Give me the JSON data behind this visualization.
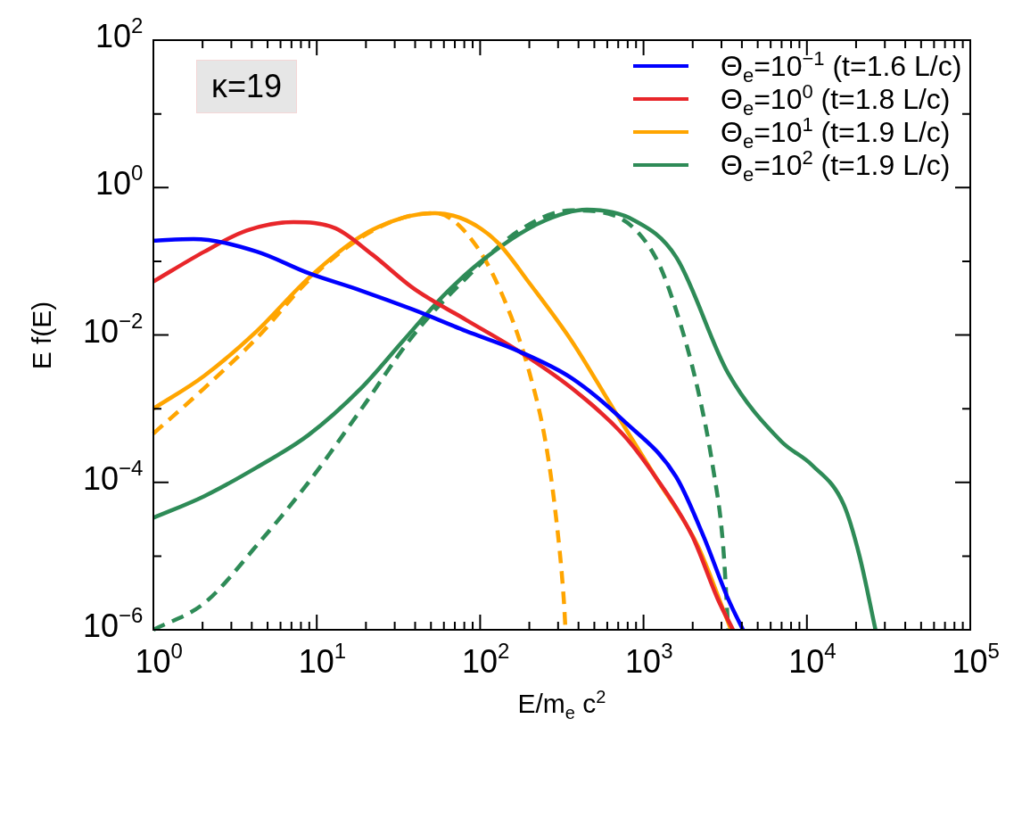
{
  "chart_data": {
    "type": "line",
    "xlabel": "E/m$_{e}$ c$^{2}$",
    "ylabel": "E f(E)",
    "log": "xy",
    "xlim": [
      1,
      100000
    ],
    "ylim": [
      1e-06,
      100
    ],
    "grid": false,
    "legend": "top right",
    "marker": "none",
    "line_style": "solid",
    "annotations": [
      "κ=19"
    ],
    "xticks": [
      {
        "value": 1,
        "label": "10$^{0}$"
      },
      {
        "value": 2,
        "label": null
      },
      {
        "value": 3,
        "label": null
      },
      {
        "value": 4,
        "label": null
      },
      {
        "value": 5,
        "label": null
      },
      {
        "value": 6,
        "label": null
      },
      {
        "value": 7,
        "label": null
      },
      {
        "value": 8,
        "label": null
      },
      {
        "value": 9,
        "label": null
      },
      {
        "value": 10,
        "label": "10$^{1}$"
      },
      {
        "value": 20,
        "label": null
      },
      {
        "value": 30,
        "label": null
      },
      {
        "value": 40,
        "label": null
      },
      {
        "value": 50,
        "label": null
      },
      {
        "value": 60,
        "label": null
      },
      {
        "value": 70,
        "label": null
      },
      {
        "value": 80,
        "label": null
      },
      {
        "value": 90,
        "label": null
      },
      {
        "value": 100,
        "label": "10$^{2}$"
      },
      {
        "value": 200,
        "label": null
      },
      {
        "value": 300,
        "label": null
      },
      {
        "value": 400,
        "label": null
      },
      {
        "value": 500,
        "label": null
      },
      {
        "value": 600,
        "label": null
      },
      {
        "value": 700,
        "label": null
      },
      {
        "value": 800,
        "label": null
      },
      {
        "value": 900,
        "label": null
      },
      {
        "value": 1000,
        "label": "10$^{3}$"
      },
      {
        "value": 2000,
        "label": null
      },
      {
        "value": 3000,
        "label": null
      },
      {
        "value": 4000,
        "label": null
      },
      {
        "value": 5000,
        "label": null
      },
      {
        "value": 6000,
        "label": null
      },
      {
        "value": 7000,
        "label": null
      },
      {
        "value": 8000,
        "label": null
      },
      {
        "value": 9000,
        "label": null
      },
      {
        "value": 10000,
        "label": "10$^{4}$"
      },
      {
        "value": 20000,
        "label": null
      },
      {
        "value": 30000,
        "label": null
      },
      {
        "value": 40000,
        "label": null
      },
      {
        "value": 50000,
        "label": null
      },
      {
        "value": 60000,
        "label": null
      },
      {
        "value": 70000,
        "label": null
      },
      {
        "value": 80000,
        "label": null
      },
      {
        "value": 90000,
        "label": null
      },
      {
        "value": 100000,
        "label": "10$^{5}$"
      }
    ],
    "yticks": [
      {
        "value": 1e-06,
        "label": "10$^{−6}$"
      },
      {
        "value": 1e-05,
        "label": null
      },
      {
        "value": 0.0001,
        "label": "10$^{−4}$"
      },
      {
        "value": 0.001,
        "label": null
      },
      {
        "value": 0.01,
        "label": "10$^{−2}$"
      },
      {
        "value": 0.1,
        "label": null
      },
      {
        "value": 1,
        "label": "10$^{0}$"
      },
      {
        "value": 10,
        "label": null
      },
      {
        "value": 100,
        "label": "10$^{2}$"
      }
    ],
    "series": [
      {
        "name": "Θ$_{e}$=10$^{−1}$  (t=1.6 L/c)",
        "color": "#0000ff",
        "x": [
          1,
          1.76,
          4.3,
          8.9,
          18.7,
          39,
          82,
          173,
          363,
          753,
          1580,
          2320,
          3300,
          4060
        ],
        "values": [
          0.19,
          0.2,
          0.135,
          0.069,
          0.04,
          0.022,
          0.0113,
          0.006,
          0.0026,
          0.00069,
          0.00012,
          1.9e-05,
          2.6e-06,
          1e-06
        ]
      },
      {
        "name": "Θ$_{e}$=10$^{0}$  (t=1.8 L/c)",
        "color": "#e8262a",
        "x": [
          1,
          2.05,
          3.7,
          7.2,
          13,
          21.8,
          39,
          82,
          173,
          363,
          753,
          1180,
          1980,
          2850,
          3530
        ],
        "values": [
          0.053,
          0.135,
          0.26,
          0.34,
          0.28,
          0.124,
          0.043,
          0.016,
          0.006,
          0.0019,
          0.00044,
          0.00012,
          1.9e-05,
          2.6e-06,
          1e-06
        ]
      },
      {
        "name": "Θ$_{e}$=10$^{1}$  (t=1.9 L/c)",
        "color": "#ffa500",
        "x": [
          1,
          2.05,
          4.3,
          8.9,
          18.7,
          33.7,
          53,
          82,
          128,
          201,
          363,
          656,
          1180,
          2140,
          3070,
          3430
        ],
        "values": [
          0.001,
          0.0028,
          0.0113,
          0.059,
          0.22,
          0.39,
          0.45,
          0.36,
          0.18,
          0.05,
          0.0083,
          0.00098,
          0.00012,
          1.4e-05,
          1.9e-06,
          1e-06
        ]
      },
      {
        "name": "Θ$_{e}$=10$^{2}$  (t=1.9 L/c)",
        "color": "#2e8b57",
        "x": [
          1,
          2.05,
          4.3,
          8.9,
          18.7,
          33.7,
          61,
          110,
          231,
          450,
          875,
          1580,
          3300,
          6960,
          10800,
          16800,
          21000,
          26300
        ],
        "values": [
          3.3e-05,
          6.5e-05,
          0.00016,
          0.00044,
          0.0019,
          0.0083,
          0.036,
          0.115,
          0.33,
          0.5,
          0.36,
          0.115,
          0.003,
          0.00036,
          0.00017,
          5e-05,
          1e-05,
          1e-06
        ]
      },
      {
        "color": "#ffa500",
        "line_style": "dashed",
        "x": [
          1,
          2.05,
          4.3,
          8.9,
          18.7,
          33.7,
          53,
          95,
          149,
          201,
          251,
          290,
          325,
          333
        ],
        "values": [
          0.00046,
          0.0019,
          0.0091,
          0.055,
          0.21,
          0.39,
          0.45,
          0.16,
          0.022,
          0.003,
          0.00036,
          3.7e-05,
          2.6e-06,
          1e-06
        ]
      },
      {
        "color": "#2e8b57",
        "line_style": "dashed",
        "x": [
          1,
          2.05,
          4.3,
          8.9,
          18.7,
          39,
          82,
          173,
          363,
          656,
          1180,
          1580,
          2140,
          2660,
          3070,
          3300
        ],
        "values": [
          1e-06,
          2.3e-06,
          1.4e-05,
          0.0001,
          0.00098,
          0.0099,
          0.059,
          0.26,
          0.49,
          0.42,
          0.115,
          0.022,
          0.0019,
          0.00016,
          1.4e-05,
          1e-06
        ]
      }
    ]
  }
}
